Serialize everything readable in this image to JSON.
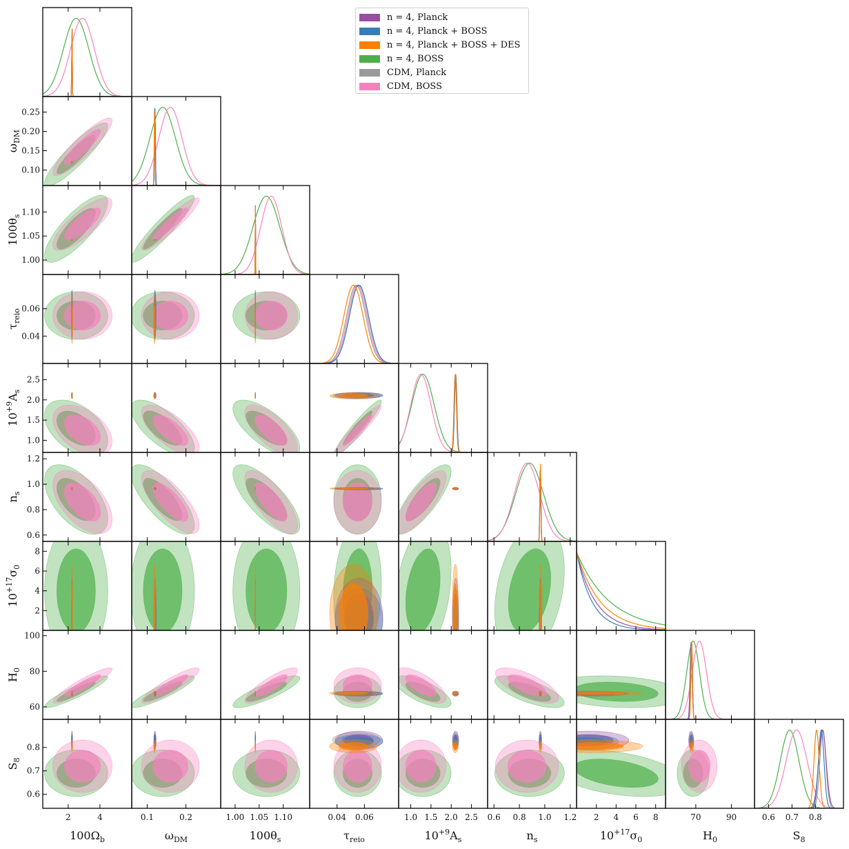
{
  "chart_data": {
    "type": "corner",
    "title": "",
    "parameters": [
      {
        "key": "Ob",
        "label": "100Ω_b",
        "label_main": "100Ω",
        "label_sub": "b",
        "range": [
          0.4,
          6.0
        ],
        "ticks": [
          2,
          4
        ]
      },
      {
        "key": "wdm",
        "label": "ω_DM",
        "label_main": "ω",
        "label_sub": "DM",
        "range": [
          0.06,
          0.29
        ],
        "ticks": [
          0.1,
          0.2
        ],
        "ticks_y": [
          0.1,
          0.15,
          0.2,
          0.25
        ],
        "tick_labels_y": [
          "0.10",
          "0.15",
          "0.20",
          "0.25"
        ],
        "tick_labels_x": [
          "0.1",
          "0.2"
        ]
      },
      {
        "key": "th",
        "label": "100θ_s",
        "label_main": "100θ",
        "label_sub": "s",
        "range": [
          0.97,
          1.155
        ],
        "ticks": [
          1.0,
          1.05,
          1.1
        ],
        "tick_labels": [
          "1.00",
          "1.05",
          "1.10"
        ]
      },
      {
        "key": "tau",
        "label": "τ_reio",
        "label_main": "τ",
        "label_sub": "reio",
        "range": [
          0.02,
          0.085
        ],
        "ticks": [
          0.04,
          0.06
        ],
        "tick_labels": [
          "0.04",
          "0.06"
        ]
      },
      {
        "key": "As",
        "label": "10^+9 A_s",
        "label_main": "10",
        "label_sup": "+9",
        "label_after": "A",
        "label_sub": "s",
        "range": [
          0.7,
          2.9
        ],
        "ticks": [
          1.0,
          1.5,
          2.0,
          2.5
        ],
        "tick_labels": [
          "1.0",
          "1.5",
          "2.0",
          "2.5"
        ]
      },
      {
        "key": "ns",
        "label": "n_s",
        "label_main": "n",
        "label_sub": "s",
        "range": [
          0.55,
          1.25
        ],
        "ticks": [
          0.6,
          0.8,
          1.0,
          1.2
        ],
        "ticks_y": [
          0.6,
          0.8,
          1.0,
          1.2
        ],
        "tick_labels_x": [
          "0.6",
          "0.8",
          "1.0"
        ],
        "tick_labels_y": [
          "0.6",
          "0.8",
          "1.0",
          "1.2"
        ]
      },
      {
        "key": "sig",
        "label": "10^+17 σ_0",
        "label_main": "10",
        "label_sup": "+17",
        "label_after": "σ",
        "label_sub": "0",
        "range": [
          0.0,
          9.0
        ],
        "ticks": [
          2,
          4,
          6,
          8
        ]
      },
      {
        "key": "H0",
        "label": "H_0",
        "label_main": "H",
        "label_sub": "0",
        "range": [
          53,
          103
        ],
        "ticks": [
          70,
          90
        ],
        "ticks_y": [
          60,
          80,
          100
        ]
      },
      {
        "key": "S8",
        "label": "S_8",
        "label_main": "S",
        "label_sub": "8",
        "range": [
          0.54,
          0.92
        ],
        "ticks": [
          0.6,
          0.7,
          0.8
        ],
        "tick_labels": [
          "0.6",
          "0.7",
          "0.8"
        ]
      }
    ],
    "legend": [
      {
        "name": "n = 4, Planck",
        "color": "#984ea3"
      },
      {
        "name": "n = 4, Planck + BOSS",
        "color": "#377eb8"
      },
      {
        "name": "n = 4, Planck + BOSS + DES",
        "color": "#ff7f00"
      },
      {
        "name": "n = 4, BOSS",
        "color": "#4daf4a"
      },
      {
        "name": "CDM, Planck",
        "color": "#999999"
      },
      {
        "name": "CDM, BOSS",
        "color": "#f781bf"
      }
    ],
    "series": [
      {
        "name": "n = 4, Planck",
        "color": "#984ea3",
        "mean": {
          "Ob": 2.24,
          "wdm": 0.12,
          "th": 1.042,
          "tau": 0.056,
          "As": 2.11,
          "ns": 0.965,
          "sig": 1.3,
          "H0": 67.4,
          "S8": 0.83
        },
        "sd": {
          "Ob": 0.015,
          "wdm": 0.0012,
          "th": 0.0003,
          "tau": 0.007,
          "As": 0.03,
          "ns": 0.004,
          "sig": 1.6,
          "H0": 0.55,
          "S8": 0.016
        }
      },
      {
        "name": "n = 4, Planck + BOSS",
        "color": "#377eb8",
        "mean": {
          "Ob": 2.24,
          "wdm": 0.12,
          "th": 1.042,
          "tau": 0.056,
          "As": 2.11,
          "ns": 0.965,
          "sig": 1.0,
          "H0": 67.6,
          "S8": 0.825
        },
        "sd": {
          "Ob": 0.015,
          "wdm": 0.0011,
          "th": 0.0003,
          "tau": 0.007,
          "As": 0.03,
          "ns": 0.004,
          "sig": 1.3,
          "H0": 0.5,
          "S8": 0.012
        }
      },
      {
        "name": "n = 4, Planck + BOSS + DES",
        "color": "#ff7f00",
        "mean": {
          "Ob": 2.24,
          "wdm": 0.119,
          "th": 1.042,
          "tau": 0.052,
          "As": 2.1,
          "ns": 0.966,
          "sig": 1.7,
          "H0": 67.7,
          "S8": 0.805
        },
        "sd": {
          "Ob": 0.015,
          "wdm": 0.001,
          "th": 0.0003,
          "tau": 0.007,
          "As": 0.03,
          "ns": 0.004,
          "sig": 2.0,
          "H0": 0.45,
          "S8": 0.011
        }
      },
      {
        "name": "n = 4, BOSS",
        "color": "#4daf4a",
        "mean": {
          "Ob": 2.5,
          "wdm": 0.14,
          "th": 1.065,
          "tau": 0.055,
          "As": 1.3,
          "ns": 0.88,
          "sig": 4.0,
          "H0": 68.5,
          "S8": 0.69
        },
        "sd": {
          "Ob": 0.8,
          "wdm": 0.033,
          "th": 0.028,
          "tau": 0.007,
          "As": 0.28,
          "ns": 0.11,
          "sig": 2.8,
          "H0": 3.6,
          "S8": 0.04
        }
      },
      {
        "name": "CDM, Planck",
        "color": "#999999",
        "mean": {
          "Ob": 2.24,
          "wdm": 0.12,
          "th": 1.042,
          "tau": 0.054,
          "As": 2.1,
          "ns": 0.965,
          "sig": 0,
          "H0": 67.4,
          "S8": 0.832
        },
        "sd": {
          "Ob": 0.015,
          "wdm": 0.0012,
          "th": 0.0003,
          "tau": 0.007,
          "As": 0.03,
          "ns": 0.004,
          "sig": 0,
          "H0": 0.55,
          "S8": 0.013
        }
      },
      {
        "name": "CDM, BOSS",
        "color": "#f781bf",
        "mean": {
          "Ob": 2.9,
          "wdm": 0.16,
          "th": 1.075,
          "tau": 0.055,
          "As": 1.25,
          "ns": 0.86,
          "sig": 0,
          "H0": 72.0,
          "S8": 0.72
        },
        "sd": {
          "Ob": 0.75,
          "wdm": 0.03,
          "th": 0.022,
          "tau": 0.007,
          "As": 0.25,
          "ns": 0.1,
          "sig": 0,
          "H0": 4.0,
          "S8": 0.045
        }
      }
    ]
  }
}
